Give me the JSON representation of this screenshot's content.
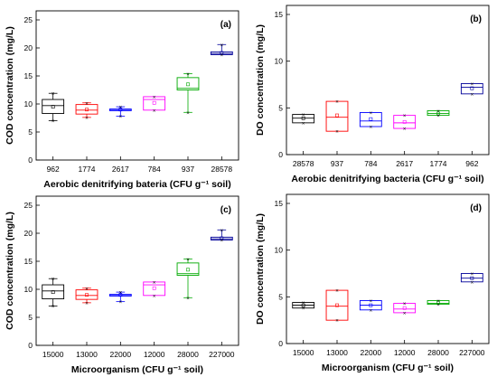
{
  "chart_data": [
    {
      "type": "box",
      "panel_label": "(a)",
      "ylabel": "COD concentration (mg/L)",
      "xlabel": "Aerobic denitrifying bateria (CFU g⁻¹ soil)",
      "ylim": [
        0,
        25
      ],
      "yticks": [
        0,
        5,
        10,
        15,
        20,
        25
      ],
      "categories": [
        "962",
        "1774",
        "2617",
        "784",
        "937",
        "28578"
      ],
      "colors": [
        "#000000",
        "#ff0000",
        "#0000ff",
        "#ff00ff",
        "#00aa00",
        "#000099"
      ],
      "boxes": [
        {
          "q1": 8.3,
          "median": 9.7,
          "q3": 10.8,
          "mean": 9.5,
          "whisker_low": 7.0,
          "whisker_high": 11.9
        },
        {
          "q1": 8.2,
          "median": 8.9,
          "q3": 9.9,
          "mean": 9.0,
          "whisker_low": 7.6,
          "whisker_high": 10.2
        },
        {
          "q1": 8.8,
          "median": 9.0,
          "q3": 9.1,
          "mean": 9.0,
          "whisker_low": 7.8,
          "whisker_high": 9.5
        },
        {
          "q1": 8.9,
          "median": 10.8,
          "q3": 11.3,
          "mean": 10.2,
          "whisker_low": 8.9,
          "whisker_high": 11.3
        },
        {
          "q1": 12.5,
          "median": 12.8,
          "q3": 14.7,
          "mean": 13.5,
          "whisker_low": 8.5,
          "whisker_high": 15.4
        },
        {
          "q1": 18.8,
          "median": 19.0,
          "q3": 19.3,
          "mean": 19.1,
          "whisker_low": 18.8,
          "whisker_high": 20.6
        }
      ]
    },
    {
      "type": "box",
      "panel_label": "(b)",
      "ylabel": "DO concentration (mg/L)",
      "xlabel": "Aerobic denitrifying bacteria (CFU g⁻¹ soil)",
      "ylim": [
        0,
        15
      ],
      "yticks": [
        0,
        5,
        10,
        15
      ],
      "categories": [
        "28578",
        "937",
        "784",
        "2617",
        "1774",
        "962"
      ],
      "colors": [
        "#000000",
        "#ff0000",
        "#0000ff",
        "#ff00ff",
        "#00aa00",
        "#000099"
      ],
      "boxes": [
        {
          "q1": 3.4,
          "median": 3.9,
          "q3": 4.3,
          "mean": 3.9,
          "whisker_low": 3.4,
          "whisker_high": 4.3
        },
        {
          "q1": 2.5,
          "median": 4.0,
          "q3": 5.7,
          "mean": 4.2,
          "whisker_low": 2.5,
          "whisker_high": 5.7
        },
        {
          "q1": 3.0,
          "median": 3.6,
          "q3": 4.5,
          "mean": 3.8,
          "whisker_low": 3.0,
          "whisker_high": 4.5
        },
        {
          "q1": 2.8,
          "median": 3.4,
          "q3": 4.2,
          "mean": 3.5,
          "whisker_low": 2.8,
          "whisker_high": 4.2
        },
        {
          "q1": 4.2,
          "median": 4.4,
          "q3": 4.7,
          "mean": 4.4,
          "whisker_low": 4.2,
          "whisker_high": 4.7
        },
        {
          "q1": 6.5,
          "median": 7.2,
          "q3": 7.6,
          "mean": 7.1,
          "whisker_low": 6.5,
          "whisker_high": 7.6
        }
      ]
    },
    {
      "type": "box",
      "panel_label": "(c)",
      "ylabel": "COD concentration (mg/L)",
      "xlabel": "Microorganism (CFU g⁻¹ soil)",
      "ylim": [
        0,
        25
      ],
      "yticks": [
        0,
        5,
        10,
        15,
        20,
        25
      ],
      "categories": [
        "15000",
        "13000",
        "22000",
        "12000",
        "28000",
        "227000"
      ],
      "colors": [
        "#000000",
        "#ff0000",
        "#0000ff",
        "#ff00ff",
        "#00aa00",
        "#000099"
      ],
      "boxes": [
        {
          "q1": 8.3,
          "median": 9.7,
          "q3": 10.8,
          "mean": 9.5,
          "whisker_low": 7.0,
          "whisker_high": 11.9
        },
        {
          "q1": 8.2,
          "median": 8.9,
          "q3": 9.9,
          "mean": 9.0,
          "whisker_low": 7.6,
          "whisker_high": 10.2
        },
        {
          "q1": 8.8,
          "median": 9.0,
          "q3": 9.1,
          "mean": 9.0,
          "whisker_low": 7.8,
          "whisker_high": 9.5
        },
        {
          "q1": 8.9,
          "median": 10.8,
          "q3": 11.3,
          "mean": 10.2,
          "whisker_low": 8.9,
          "whisker_high": 11.3
        },
        {
          "q1": 12.5,
          "median": 12.8,
          "q3": 14.7,
          "mean": 13.5,
          "whisker_low": 8.5,
          "whisker_high": 15.4
        },
        {
          "q1": 18.8,
          "median": 19.0,
          "q3": 19.3,
          "mean": 19.1,
          "whisker_low": 18.8,
          "whisker_high": 20.6
        }
      ]
    },
    {
      "type": "box",
      "panel_label": "(d)",
      "ylabel": "DO concentration (mg/L)",
      "xlabel": "Microorganism (CFU g⁻¹ soil)",
      "ylim": [
        0,
        15
      ],
      "yticks": [
        0,
        5,
        10,
        15
      ],
      "categories": [
        "15000",
        "13000",
        "22000",
        "12000",
        "28000",
        "227000"
      ],
      "colors": [
        "#000000",
        "#ff0000",
        "#0000ff",
        "#ff00ff",
        "#00aa00",
        "#000099"
      ],
      "boxes": [
        {
          "q1": 3.8,
          "median": 4.1,
          "q3": 4.4,
          "mean": 4.1,
          "whisker_low": 3.8,
          "whisker_high": 4.4
        },
        {
          "q1": 2.5,
          "median": 4.0,
          "q3": 5.7,
          "mean": 4.1,
          "whisker_low": 2.5,
          "whisker_high": 5.7
        },
        {
          "q1": 3.6,
          "median": 4.1,
          "q3": 4.6,
          "mean": 4.1,
          "whisker_low": 3.6,
          "whisker_high": 4.6
        },
        {
          "q1": 3.3,
          "median": 3.7,
          "q3": 4.3,
          "mean": 3.8,
          "whisker_low": 3.3,
          "whisker_high": 4.3
        },
        {
          "q1": 4.2,
          "median": 4.3,
          "q3": 4.6,
          "mean": 4.4,
          "whisker_low": 4.2,
          "whisker_high": 4.6
        },
        {
          "q1": 6.6,
          "median": 7.0,
          "q3": 7.5,
          "mean": 7.0,
          "whisker_low": 6.6,
          "whisker_high": 7.5
        }
      ]
    }
  ]
}
